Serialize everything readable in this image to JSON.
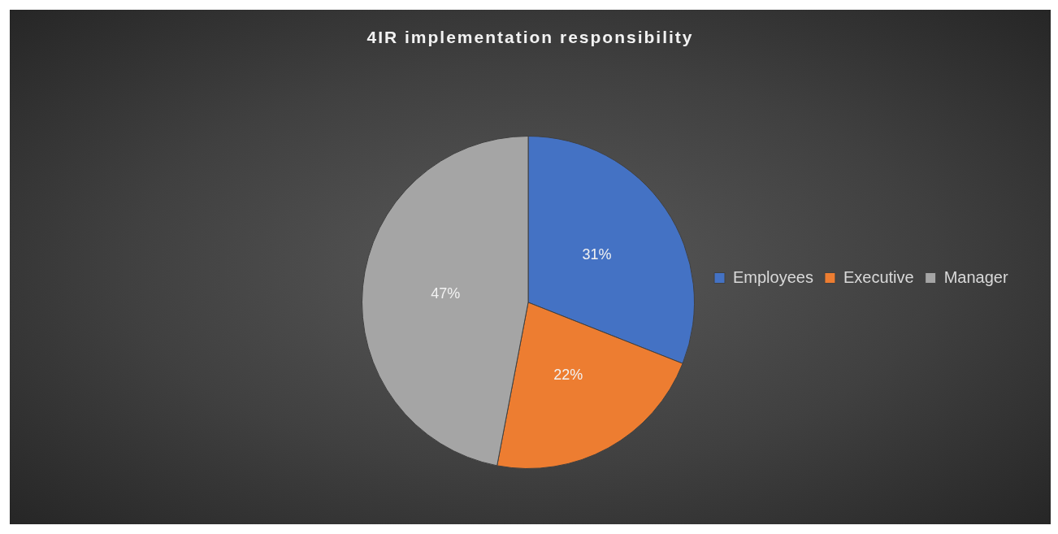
{
  "chart_data": {
    "type": "pie",
    "title": "4IR implementation responsibility",
    "categories": [
      "Employees",
      "Executive",
      "Manager"
    ],
    "values": [
      31,
      22,
      47
    ],
    "colors": [
      "#4472c4",
      "#ed7d31",
      "#a5a5a5"
    ],
    "value_labels": [
      "31%",
      "22%",
      "47%"
    ],
    "legend": "right"
  }
}
